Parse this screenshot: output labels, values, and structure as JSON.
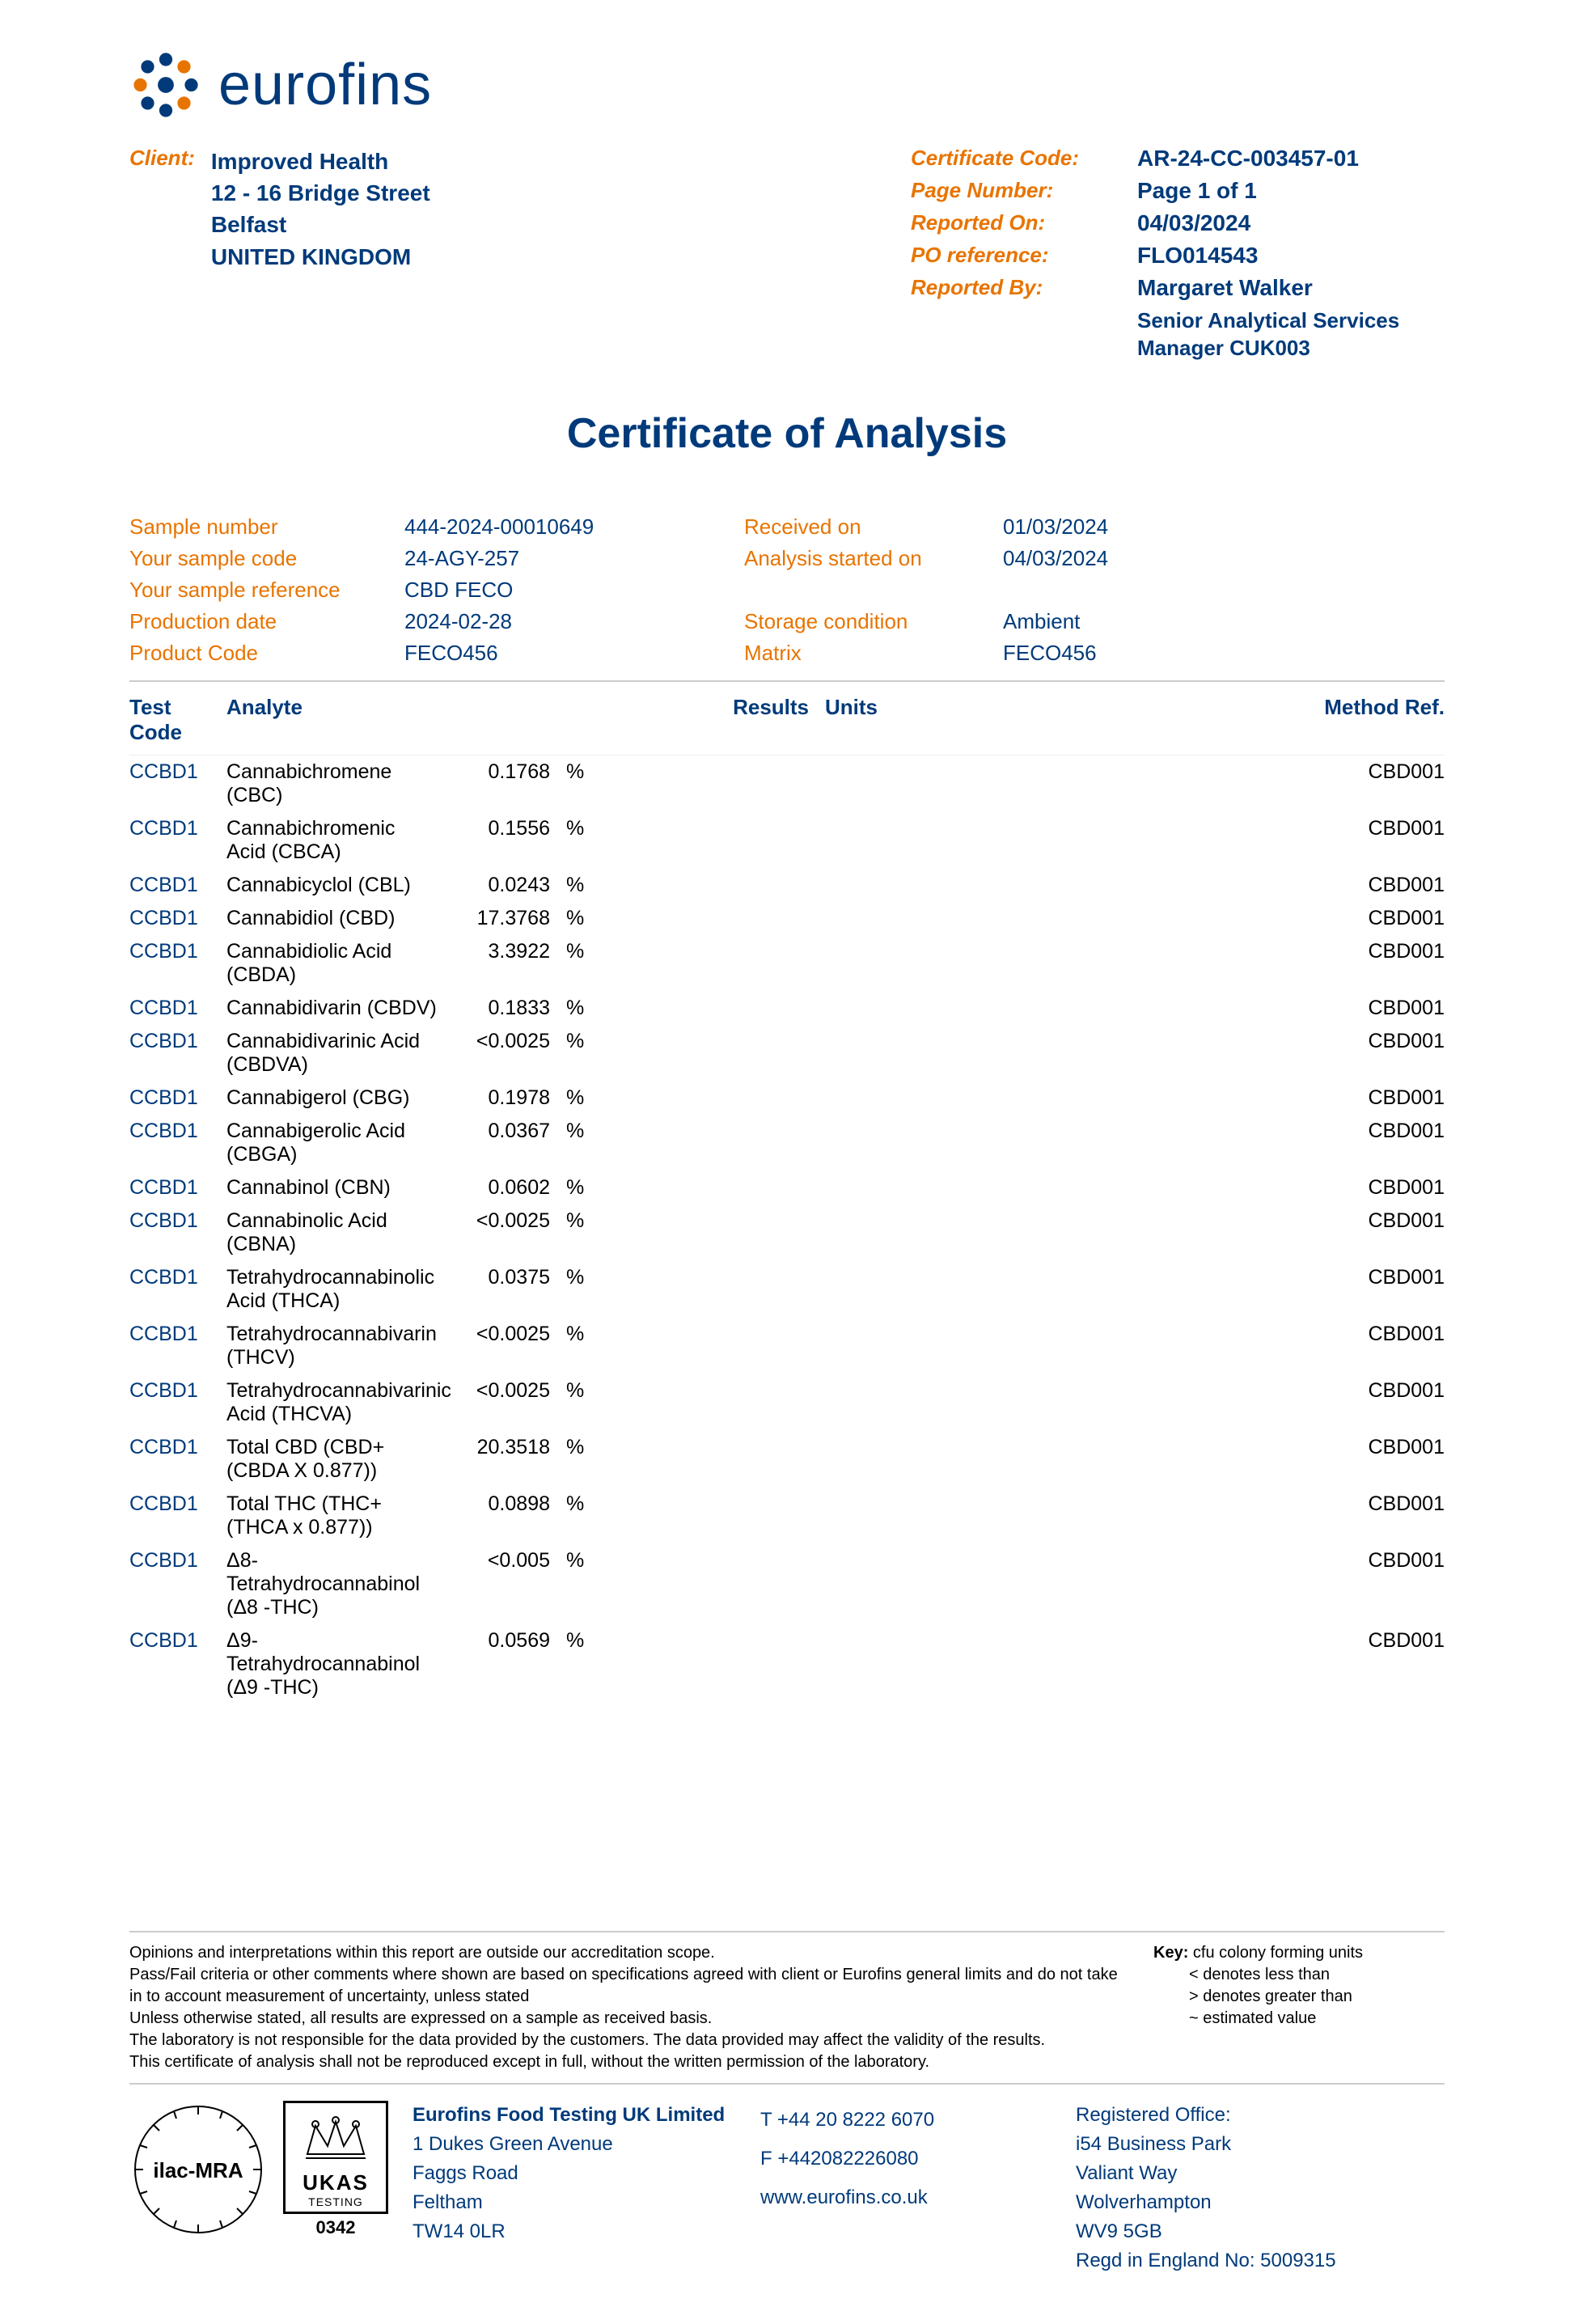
{
  "logo": {
    "text": "eurofins"
  },
  "client": {
    "label": "Client:",
    "name": "Improved Health",
    "addr1": "12 - 16 Bridge Street",
    "addr2": "Belfast",
    "addr3": "UNITED KINGDOM"
  },
  "cert": {
    "code_label": "Certificate Code:",
    "code_value": "AR-24-CC-003457-01",
    "page_label": "Page Number:",
    "page_value": "Page 1 of 1",
    "reported_on_label": "Reported On:",
    "reported_on_value": "04/03/2024",
    "po_label": "PO reference:",
    "po_value": "FLO014543",
    "by_label": "Reported By:",
    "by_name": "Margaret Walker",
    "by_title": "Senior Analytical Services Manager CUK003"
  },
  "title": "Certificate of Analysis",
  "sample": {
    "number_label": "Sample number",
    "number_value": "444-2024-00010649",
    "code_label": "Your sample code",
    "code_value": "24-AGY-257",
    "ref_label": "Your sample reference",
    "ref_value": "CBD FECO",
    "prod_label": "Production date",
    "prod_value": "2024-02-28",
    "pcode_label": "Product Code",
    "pcode_value": "FECO456",
    "received_label": "Received on",
    "received_value": "01/03/2024",
    "started_label": "Analysis started on",
    "started_value": "04/03/2024",
    "storage_label": "Storage condition",
    "storage_value": "Ambient",
    "matrix_label": "Matrix",
    "matrix_value": "FECO456"
  },
  "columns": {
    "test": "Test Code",
    "analyte": "Analyte",
    "results": "Results",
    "units": "Units",
    "method": "Method Ref."
  },
  "rows": [
    {
      "test": "CCBD1",
      "analyte": "Cannabichromene (CBC)",
      "result": "0.1768",
      "units": "%",
      "method": "CBD001"
    },
    {
      "test": "CCBD1",
      "analyte": "Cannabichromenic Acid (CBCA)",
      "result": "0.1556",
      "units": "%",
      "method": "CBD001"
    },
    {
      "test": "CCBD1",
      "analyte": "Cannabicyclol (CBL)",
      "result": "0.0243",
      "units": "%",
      "method": "CBD001"
    },
    {
      "test": "CCBD1",
      "analyte": "Cannabidiol (CBD)",
      "result": "17.3768",
      "units": "%",
      "method": "CBD001"
    },
    {
      "test": "CCBD1",
      "analyte": "Cannabidiolic Acid (CBDA)",
      "result": "3.3922",
      "units": "%",
      "method": "CBD001"
    },
    {
      "test": "CCBD1",
      "analyte": "Cannabidivarin (CBDV)",
      "result": "0.1833",
      "units": "%",
      "method": "CBD001"
    },
    {
      "test": "CCBD1",
      "analyte": "Cannabidivarinic Acid (CBDVA)",
      "result": "<0.0025",
      "units": "%",
      "method": "CBD001"
    },
    {
      "test": "CCBD1",
      "analyte": "Cannabigerol (CBG)",
      "result": "0.1978",
      "units": "%",
      "method": "CBD001"
    },
    {
      "test": "CCBD1",
      "analyte": "Cannabigerolic Acid (CBGA)",
      "result": "0.0367",
      "units": "%",
      "method": "CBD001"
    },
    {
      "test": "CCBD1",
      "analyte": "Cannabinol (CBN)",
      "result": "0.0602",
      "units": "%",
      "method": "CBD001"
    },
    {
      "test": "CCBD1",
      "analyte": "Cannabinolic Acid (CBNA)",
      "result": "<0.0025",
      "units": "%",
      "method": "CBD001"
    },
    {
      "test": "CCBD1",
      "analyte": "Tetrahydrocannabinolic Acid (THCA)",
      "result": "0.0375",
      "units": "%",
      "method": "CBD001"
    },
    {
      "test": "CCBD1",
      "analyte": "Tetrahydrocannabivarin (THCV)",
      "result": "<0.0025",
      "units": "%",
      "method": "CBD001"
    },
    {
      "test": "CCBD1",
      "analyte": "Tetrahydrocannabivarinic Acid (THCVA)",
      "result": "<0.0025",
      "units": "%",
      "method": "CBD001"
    },
    {
      "test": "CCBD1",
      "analyte": "Total CBD (CBD+(CBDA X 0.877))",
      "result": "20.3518",
      "units": "%",
      "method": "CBD001"
    },
    {
      "test": "CCBD1",
      "analyte": "Total THC (THC+(THCA x 0.877))",
      "result": "0.0898",
      "units": "%",
      "method": "CBD001"
    },
    {
      "test": "CCBD1",
      "analyte": "Δ8-Tetrahydrocannabinol (Δ8 -THC)",
      "result": "<0.005",
      "units": "%",
      "method": "CBD001"
    },
    {
      "test": "CCBD1",
      "analyte": "Δ9-Tetrahydrocannabinol (Δ9 -THC)",
      "result": "0.0569",
      "units": "%",
      "method": "CBD001"
    }
  ],
  "disclaimer": {
    "l1": "Opinions and interpretations within this report are outside our accreditation scope.",
    "l2": "Pass/Fail criteria or other comments where shown are based on specifications agreed with client or Eurofins general limits and do not take in to account measurement of uncertainty, unless stated",
    "l3": "Unless otherwise stated, all results are expressed on a sample as received basis.",
    "l4": "The laboratory is not responsible for the data provided by the customers. The data provided may affect the validity of the results.",
    "l5": "This certificate of analysis shall not be reproduced except in full, without the written permission of the laboratory."
  },
  "key": {
    "title": "Key:",
    "l1": "cfu colony forming units",
    "l2": "< denotes less than",
    "l3": "> denotes greater than",
    "l4": "~ estimated value"
  },
  "footer": {
    "company": "Eurofins Food Testing UK Limited",
    "addr1": "1 Dukes Green Avenue",
    "addr2": "Faggs Road",
    "addr3": "Feltham",
    "addr4": "TW14 0LR",
    "tel": "T  +44 20 8222 6070",
    "fax": "F  +442082226080",
    "web": "www.eurofins.co.uk",
    "reg_title": "Registered Office:",
    "reg1": "i54 Business Park",
    "reg2": "Valiant Way",
    "reg3": "Wolverhampton",
    "reg4": "WV9 5GB",
    "reg5": "Regd in England No: 5009315",
    "ukas_label": "UKAS",
    "ukas_sub": "TESTING",
    "ukas_num": "0342"
  }
}
